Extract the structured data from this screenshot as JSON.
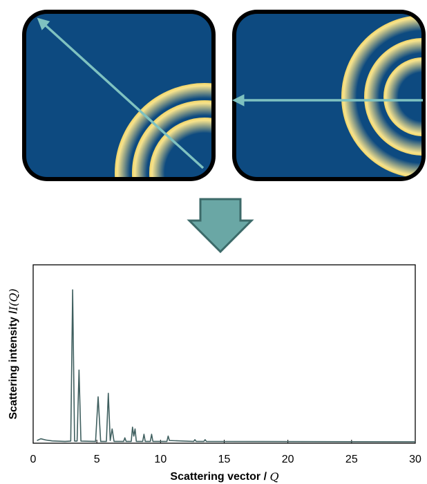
{
  "chart_data": {
    "type": "line",
    "x_label": "Scattering vector /",
    "x_label_symbol": "Q",
    "y_label": "Scattering intensity /",
    "y_label_symbol": "I(Q)",
    "x": [
      0.3,
      0.6,
      1.0,
      1.5,
      2.5,
      2.95,
      3.1,
      3.25,
      3.45,
      3.6,
      3.75,
      4.9,
      5.1,
      5.3,
      5.75,
      5.9,
      6.05,
      6.2,
      6.35,
      7.1,
      7.2,
      7.3,
      7.7,
      7.8,
      7.9,
      8.0,
      8.1,
      8.6,
      8.7,
      8.8,
      9.2,
      9.3,
      9.4,
      10.5,
      10.6,
      10.7,
      12.6,
      12.7,
      12.8,
      13.4,
      13.5,
      13.6,
      30
    ],
    "values": [
      1.5,
      2.5,
      1.8,
      1.3,
      1.0,
      1.2,
      86,
      1.2,
      1.2,
      41,
      1.2,
      1.0,
      26,
      1.0,
      1.0,
      28,
      1.5,
      8,
      1.0,
      1.0,
      3,
      1.0,
      1.0,
      9,
      4,
      8,
      1.0,
      1.0,
      5,
      1.0,
      1.0,
      5,
      1.0,
      1.0,
      4,
      1.5,
      1.0,
      2,
      1.0,
      1.0,
      2,
      1.0,
      0.8
    ],
    "color": "#3f5f5f",
    "xlim": [
      0,
      30
    ],
    "xticks": [
      0,
      5,
      10,
      15,
      20,
      25,
      30
    ],
    "ylim": [
      0,
      100
    ]
  }
}
